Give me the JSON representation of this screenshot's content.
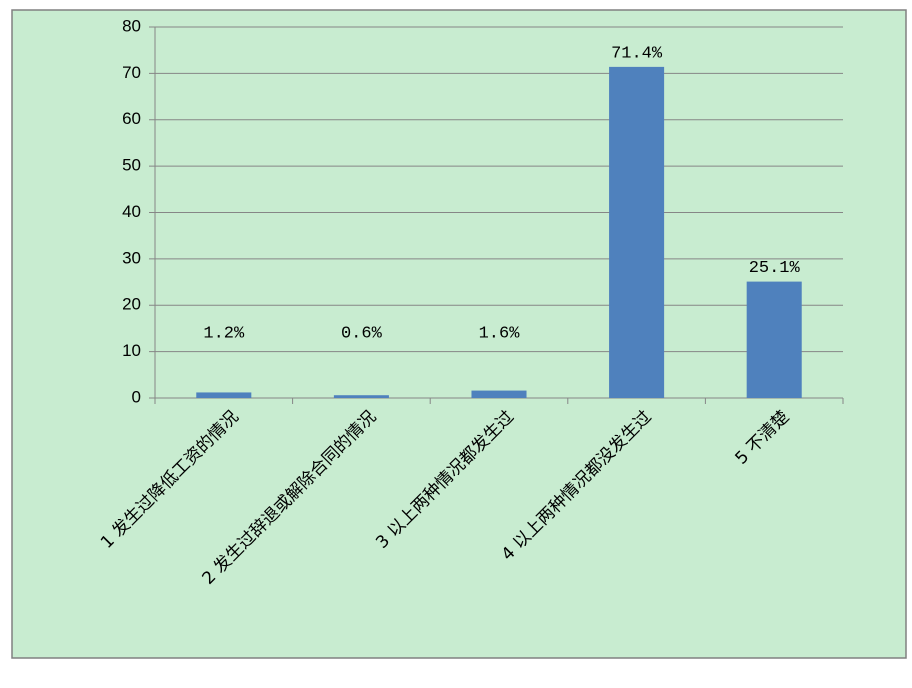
{
  "chart_data": {
    "type": "bar",
    "categories": [
      "1 发生过降低工资的情况",
      "2 发生过辞退或解除合同的情况",
      "3 以上两种情况都发生过",
      "4 以上两种情况都没发生过",
      "5 不清楚"
    ],
    "values": [
      1.2,
      0.6,
      1.6,
      71.4,
      25.1
    ],
    "value_labels": [
      "1.2%",
      "0.6%",
      "1.6%",
      "71.4%",
      "25.1%"
    ],
    "color": "#4f81bd",
    "ylim": [
      0,
      80
    ],
    "yticks": [
      0,
      10,
      20,
      30,
      40,
      50,
      60,
      70,
      80
    ],
    "grid": true
  }
}
